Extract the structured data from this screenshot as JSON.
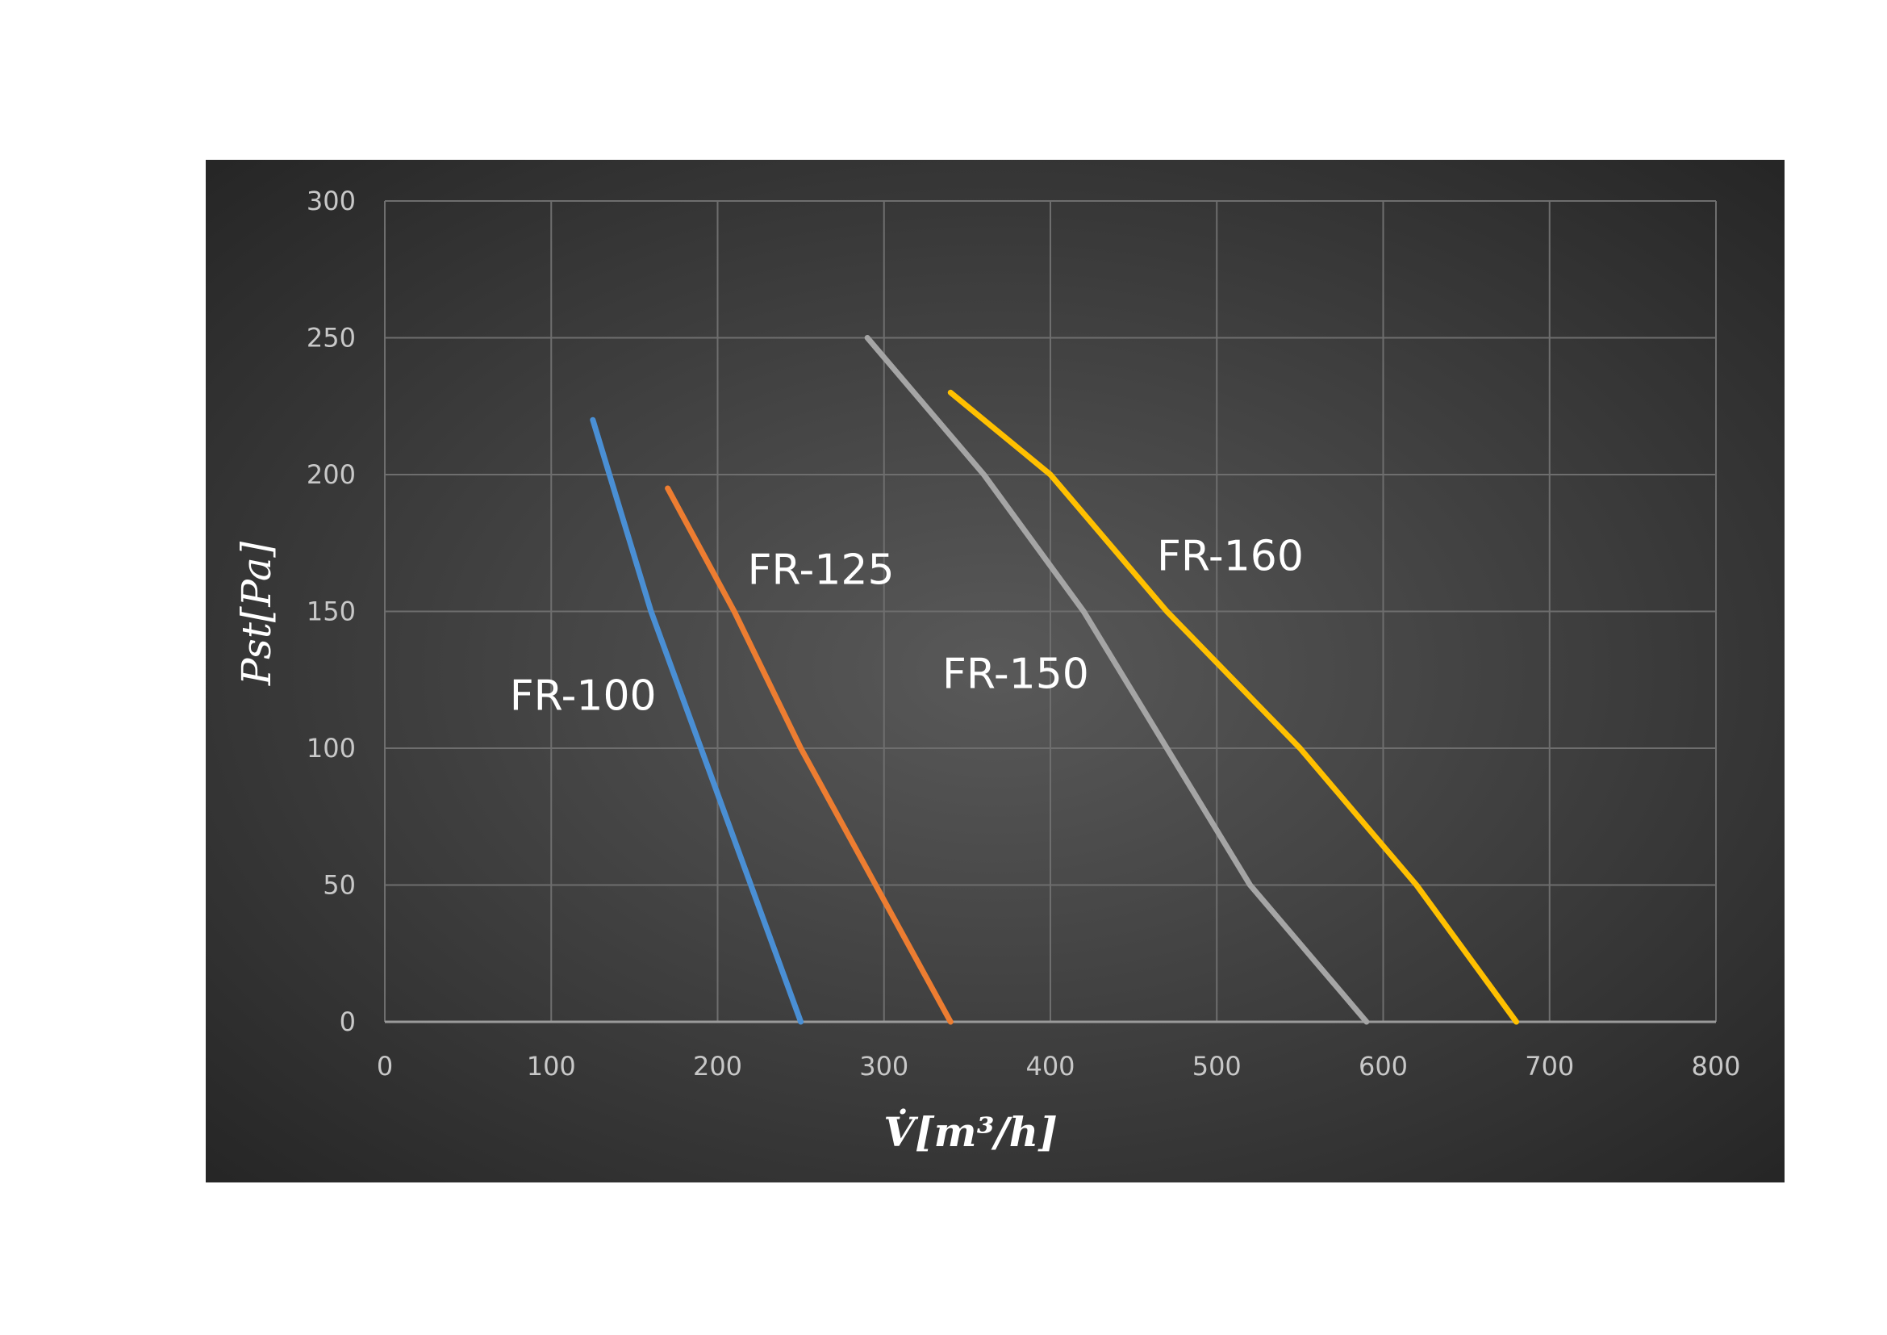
{
  "chart_data": {
    "type": "line",
    "xlabel": "V̇[m³/h]",
    "ylabel": "Pst[Pa]",
    "xlim": [
      0,
      800
    ],
    "ylim": [
      0,
      300
    ],
    "xticks": [
      0,
      100,
      200,
      300,
      400,
      500,
      600,
      700,
      800
    ],
    "yticks": [
      0,
      50,
      100,
      150,
      200,
      250,
      300
    ],
    "grid": true,
    "series": [
      {
        "name": "FR-100",
        "color": "#4a8fd4",
        "x": [
          125,
          160,
          205,
          250
        ],
        "y": [
          220,
          150,
          75,
          0
        ]
      },
      {
        "name": "FR-125",
        "color": "#ed7d31",
        "x": [
          170,
          210,
          250,
          295,
          340
        ],
        "y": [
          195,
          150,
          100,
          50,
          0
        ]
      },
      {
        "name": "FR-150",
        "color": "#a5a5a5",
        "x": [
          290,
          360,
          420,
          470,
          520,
          590
        ],
        "y": [
          250,
          200,
          150,
          100,
          50,
          0
        ]
      },
      {
        "name": "FR-160",
        "color": "#ffc000",
        "x": [
          340,
          400,
          470,
          550,
          620,
          680
        ],
        "y": [
          230,
          200,
          150,
          100,
          50,
          0
        ]
      }
    ],
    "annotations": [
      {
        "text": "FR-100",
        "x": 75,
        "y": 114
      },
      {
        "text": "FR-125",
        "x": 218,
        "y": 160
      },
      {
        "text": "FR-150",
        "x": 335,
        "y": 122
      },
      {
        "text": "FR-160",
        "x": 464,
        "y": 165
      }
    ]
  }
}
